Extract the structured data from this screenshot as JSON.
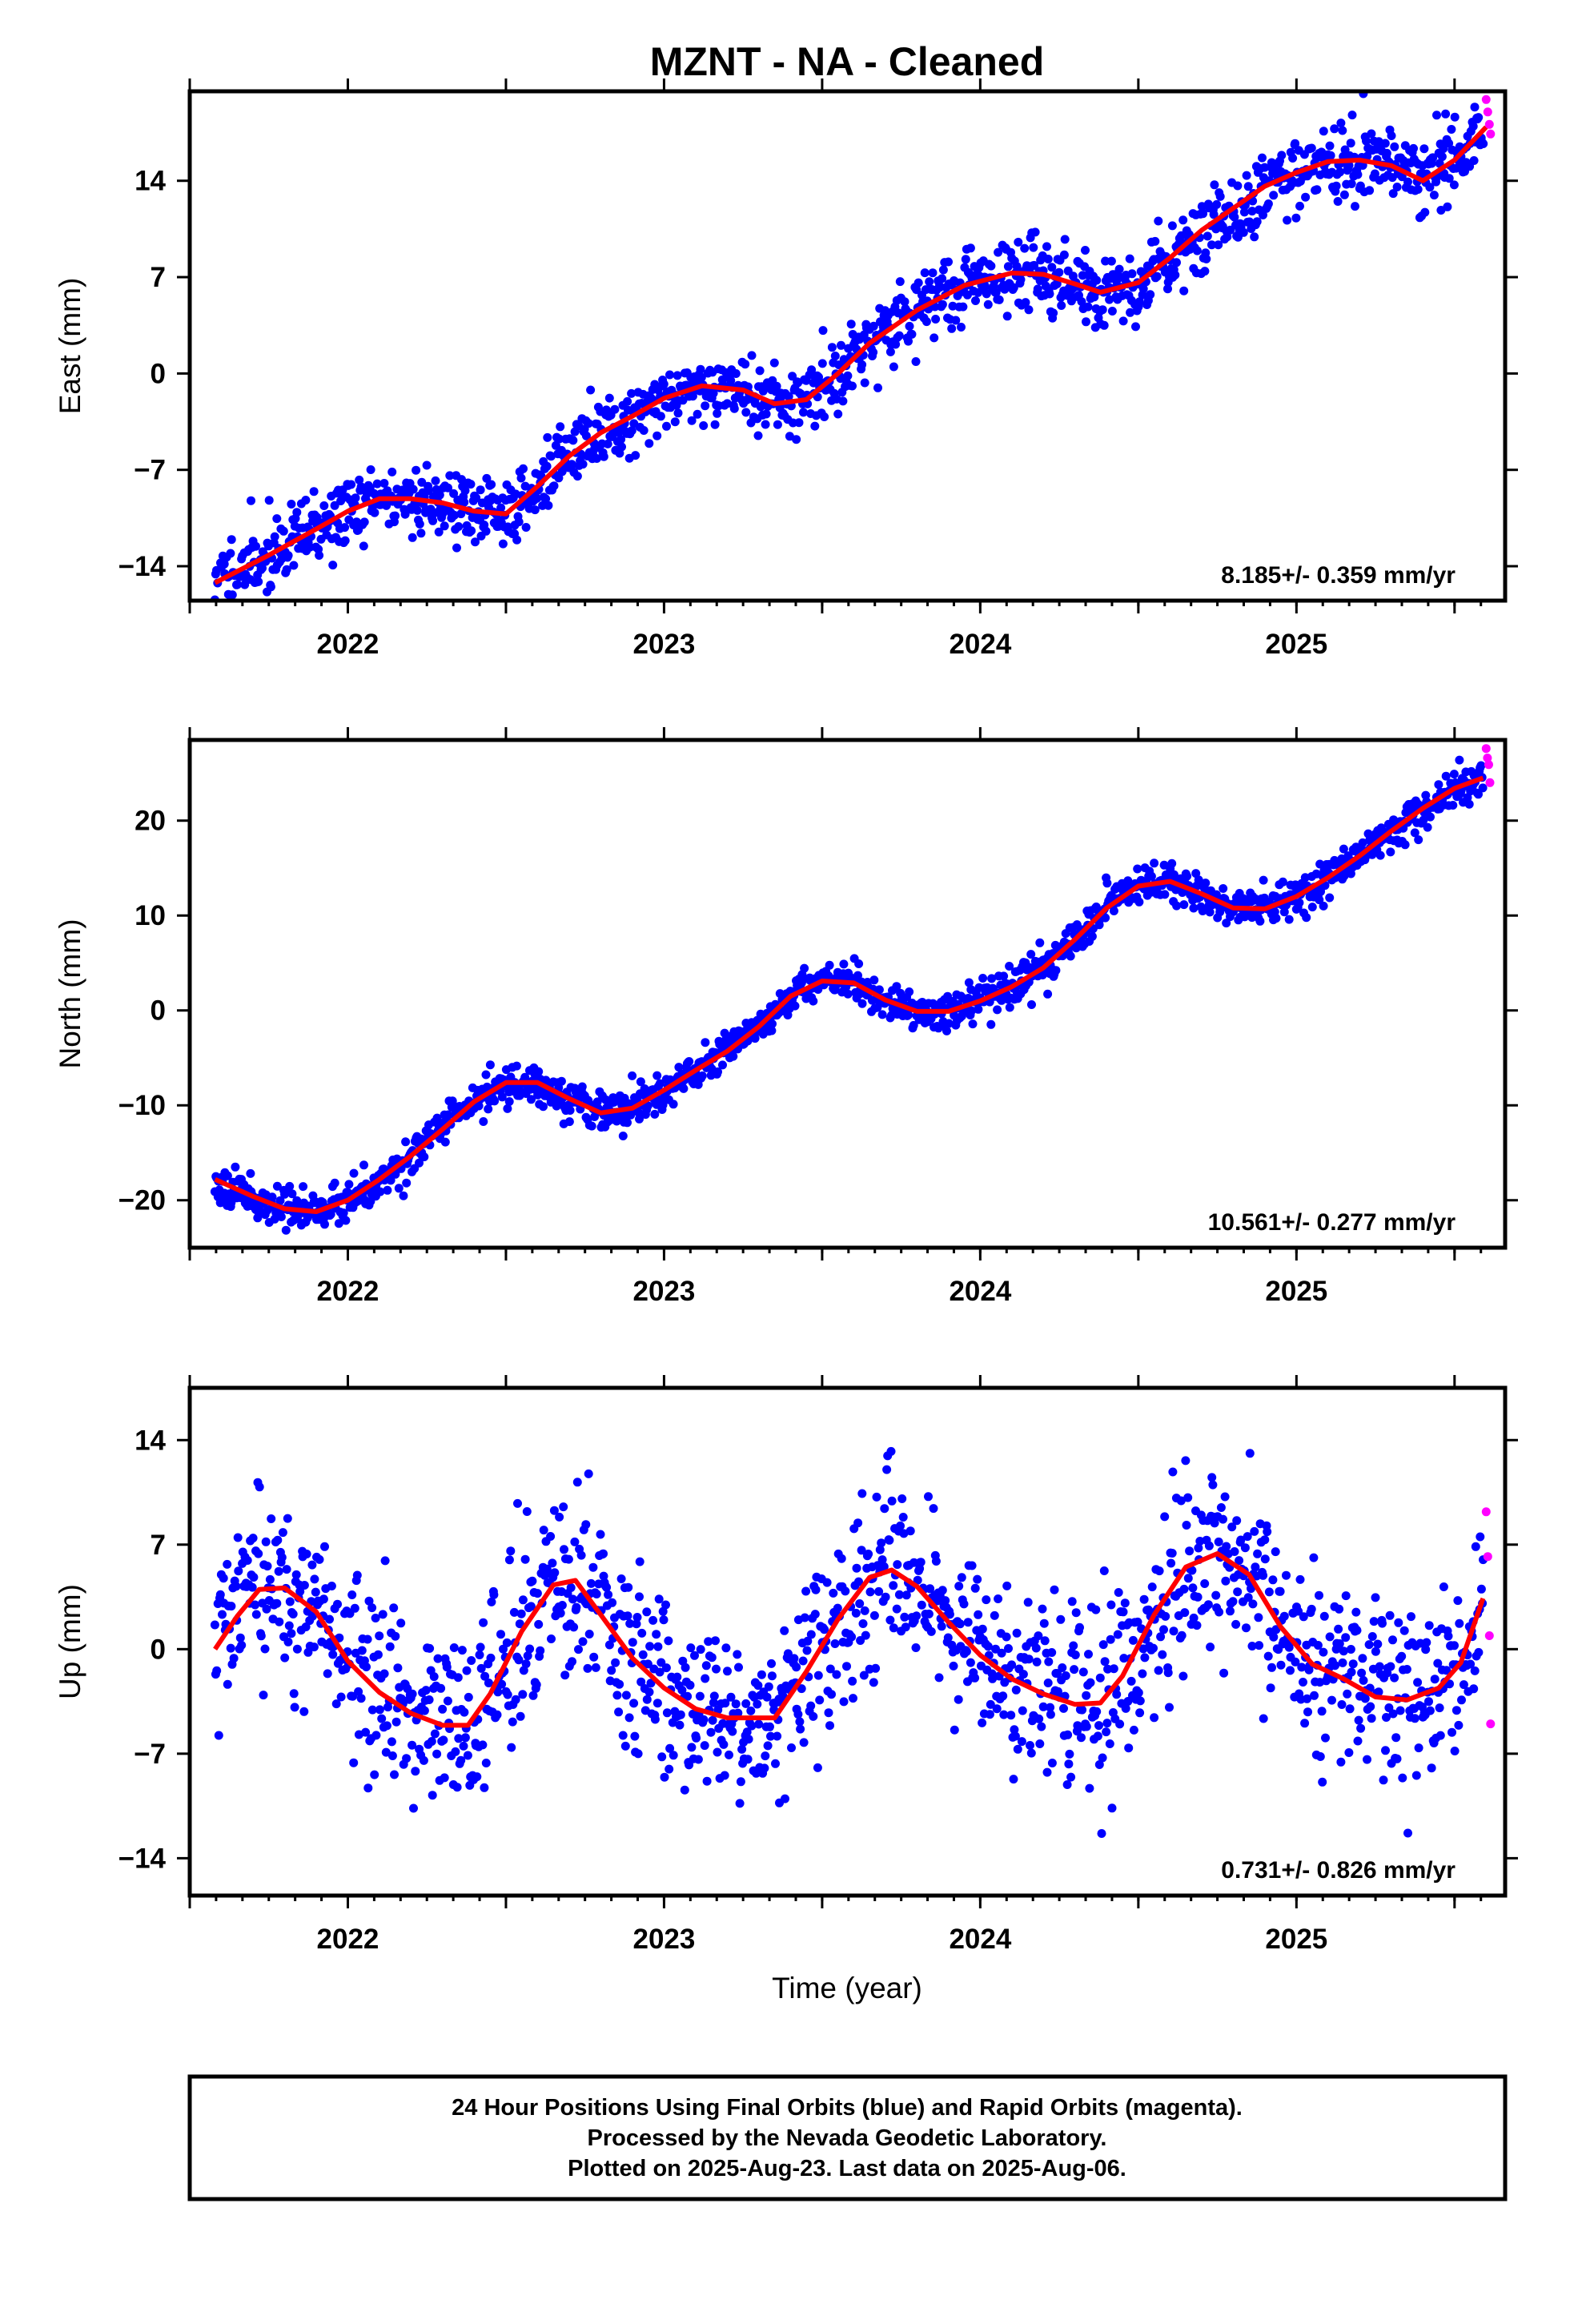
{
  "title": "MZNT  - NA - Cleaned",
  "colors": {
    "final_orbits": "#0000ff",
    "rapid_orbits": "#ff00ff",
    "fit": "#ff0000",
    "frame": "#000000"
  },
  "footnote": {
    "line1": "24 Hour Positions Using Final Orbits (blue) and Rapid Orbits (magenta).",
    "line2": "Processed by the Nevada Geodetic Laboratory.",
    "line3": "Plotted on 2025-Aug-23. Last data on 2025-Aug-06."
  },
  "chart_data": [
    {
      "type": "scatter",
      "component": "east",
      "ylabel": "East (mm)",
      "xlabel": "",
      "xlim": [
        2021.5,
        2025.66
      ],
      "ylim": [
        -16.5,
        20.5
      ],
      "xticks": [
        2022,
        2023,
        2024,
        2025
      ],
      "yticks": [
        -14,
        -7,
        0,
        7,
        14
      ],
      "rate_label": "8.185+/- 0.359 mm/yr",
      "rate_mm_per_yr": 8.185,
      "rate_uncertainty": 0.359,
      "grid": false,
      "fit_curve": {
        "x": [
          2021.58,
          2021.75,
          2021.9,
          2022.0,
          2022.1,
          2022.2,
          2022.3,
          2022.4,
          2022.5,
          2022.6,
          2022.7,
          2022.8,
          2022.9,
          2023.0,
          2023.12,
          2023.25,
          2023.35,
          2023.45,
          2023.55,
          2023.65,
          2023.8,
          2023.95,
          2024.1,
          2024.2,
          2024.3,
          2024.38,
          2024.5,
          2024.6,
          2024.7,
          2024.8,
          2024.9,
          2025.0,
          2025.1,
          2025.2,
          2025.3,
          2025.4,
          2025.5,
          2025.6
        ],
        "y": [
          -15.2,
          -13.2,
          -11.3,
          -10.0,
          -9.1,
          -9.1,
          -9.4,
          -10.0,
          -10.2,
          -8.2,
          -6.0,
          -4.3,
          -3.1,
          -1.8,
          -0.9,
          -1.2,
          -2.2,
          -1.9,
          0.0,
          2.2,
          4.6,
          6.4,
          7.3,
          7.2,
          6.5,
          5.9,
          6.6,
          8.4,
          10.4,
          12.0,
          13.6,
          14.6,
          15.4,
          15.5,
          15.1,
          14.0,
          15.5,
          17.9
        ]
      },
      "rapid_points": {
        "x": [
          2025.6,
          2025.605,
          2025.61,
          2025.614
        ],
        "y": [
          19.9,
          19.0,
          18.1,
          17.4
        ]
      },
      "scatter_model": {
        "n": 1400,
        "x_start": 2021.58,
        "x_end": 2025.59,
        "noise_sd": 1.3,
        "seed": 11
      }
    },
    {
      "type": "scatter",
      "component": "north",
      "ylabel": "North (mm)",
      "xlabel": "",
      "xlim": [
        2021.5,
        2025.66
      ],
      "ylim": [
        -25,
        28.5
      ],
      "xticks": [
        2022,
        2023,
        2024,
        2025
      ],
      "yticks": [
        -20,
        -10,
        0,
        10,
        20
      ],
      "rate_label": "10.561+/- 0.277 mm/yr",
      "rate_mm_per_yr": 10.561,
      "rate_uncertainty": 0.277,
      "grid": false,
      "fit_curve": {
        "x": [
          2021.58,
          2021.7,
          2021.8,
          2021.9,
          2022.0,
          2022.1,
          2022.2,
          2022.3,
          2022.4,
          2022.5,
          2022.6,
          2022.7,
          2022.8,
          2022.9,
          2023.0,
          2023.1,
          2023.2,
          2023.3,
          2023.4,
          2023.5,
          2023.6,
          2023.7,
          2023.8,
          2023.9,
          2024.0,
          2024.1,
          2024.2,
          2024.3,
          2024.4,
          2024.5,
          2024.6,
          2024.7,
          2024.8,
          2024.9,
          2025.0,
          2025.1,
          2025.2,
          2025.3,
          2025.4,
          2025.5,
          2025.59
        ],
        "y": [
          -17.8,
          -19.6,
          -20.9,
          -21.2,
          -20.0,
          -17.8,
          -15.3,
          -12.5,
          -9.6,
          -7.6,
          -7.6,
          -9.3,
          -10.8,
          -10.3,
          -8.4,
          -6.3,
          -4.3,
          -1.7,
          1.5,
          3.1,
          2.9,
          1.1,
          -0.1,
          -0.1,
          1.0,
          2.5,
          4.5,
          7.5,
          10.8,
          13.1,
          13.6,
          12.3,
          10.8,
          10.7,
          12.0,
          14.0,
          16.3,
          18.9,
          21.3,
          23.4,
          24.5
        ]
      },
      "rapid_points": {
        "x": [
          2025.6,
          2025.604,
          2025.608,
          2025.612
        ],
        "y": [
          27.6,
          26.6,
          25.9,
          24.0
        ]
      },
      "scatter_model": {
        "n": 1400,
        "x_start": 2021.58,
        "x_end": 2025.59,
        "noise_sd": 1.0,
        "seed": 23
      }
    },
    {
      "type": "scatter",
      "component": "up",
      "ylabel": "Up (mm)",
      "xlabel": "Time (year)",
      "xlim": [
        2021.5,
        2025.66
      ],
      "ylim": [
        -16.5,
        17.5
      ],
      "xticks": [
        2022,
        2023,
        2024,
        2025
      ],
      "yticks": [
        -14,
        -7,
        0,
        7,
        14
      ],
      "rate_label": "0.731+/- 0.826 mm/yr",
      "rate_mm_per_yr": 0.731,
      "rate_uncertainty": 0.826,
      "grid": false,
      "fit_curve": {
        "x": [
          2021.58,
          2021.65,
          2021.72,
          2021.8,
          2021.9,
          2022.0,
          2022.1,
          2022.2,
          2022.3,
          2022.38,
          2022.45,
          2022.55,
          2022.65,
          2022.72,
          2022.8,
          2022.9,
          2023.0,
          2023.1,
          2023.2,
          2023.35,
          2023.45,
          2023.55,
          2023.65,
          2023.72,
          2023.8,
          2023.9,
          2024.0,
          2024.1,
          2024.2,
          2024.3,
          2024.38,
          2024.45,
          2024.55,
          2024.65,
          2024.75,
          2024.85,
          2024.95,
          2025.05,
          2025.15,
          2025.25,
          2025.35,
          2025.45,
          2025.52,
          2025.59
        ],
        "y": [
          0.0,
          2.2,
          4.0,
          4.1,
          2.5,
          -0.8,
          -2.9,
          -4.3,
          -5.1,
          -5.1,
          -3.0,
          1.2,
          4.3,
          4.6,
          2.3,
          -0.6,
          -2.6,
          -4.0,
          -4.6,
          -4.6,
          -1.5,
          2.0,
          4.8,
          5.3,
          4.2,
          1.8,
          -0.4,
          -2.0,
          -3.0,
          -3.7,
          -3.6,
          -1.8,
          2.3,
          5.5,
          6.4,
          5.0,
          1.5,
          -1.0,
          -2.0,
          -3.2,
          -3.4,
          -2.6,
          -0.9,
          3.4
        ]
      },
      "rapid_points": {
        "x": [
          2025.6,
          2025.605,
          2025.61,
          2025.614
        ],
        "y": [
          9.2,
          6.2,
          0.9,
          -5.0
        ]
      },
      "scatter_model": {
        "n": 1400,
        "x_start": 2021.58,
        "x_end": 2025.59,
        "noise_sd": 3.0,
        "seed": 37
      }
    }
  ]
}
